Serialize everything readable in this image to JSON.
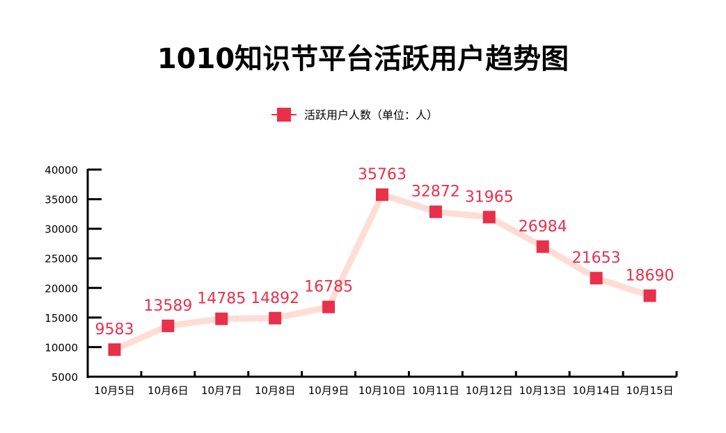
{
  "chart_data": {
    "type": "line",
    "title": "1010知识节平台活跃用户趋势图",
    "xlabel": "",
    "ylabel": "",
    "ylim": [
      5000,
      40000
    ],
    "yticks": [
      "5000",
      "10000",
      "15000",
      "20000",
      "25000",
      "30000",
      "35000",
      "40000"
    ],
    "categories": [
      "10月5日",
      "10月6日",
      "10月7日",
      "10月8日",
      "10月9日",
      "10月10日",
      "10月11日",
      "10月12日",
      "10月13日",
      "10月14日",
      "10月15日"
    ],
    "series": [
      {
        "name": "活跃用户人数（单位：人）",
        "values": [
          9583,
          13589,
          14785,
          14892,
          16785,
          35763,
          32872,
          31965,
          26984,
          21653,
          18690
        ]
      }
    ],
    "legend": "top-center",
    "grid": false,
    "colors": {
      "marker": "#e8304b",
      "line": "#ffdcd5",
      "label": "#e8304b"
    }
  }
}
